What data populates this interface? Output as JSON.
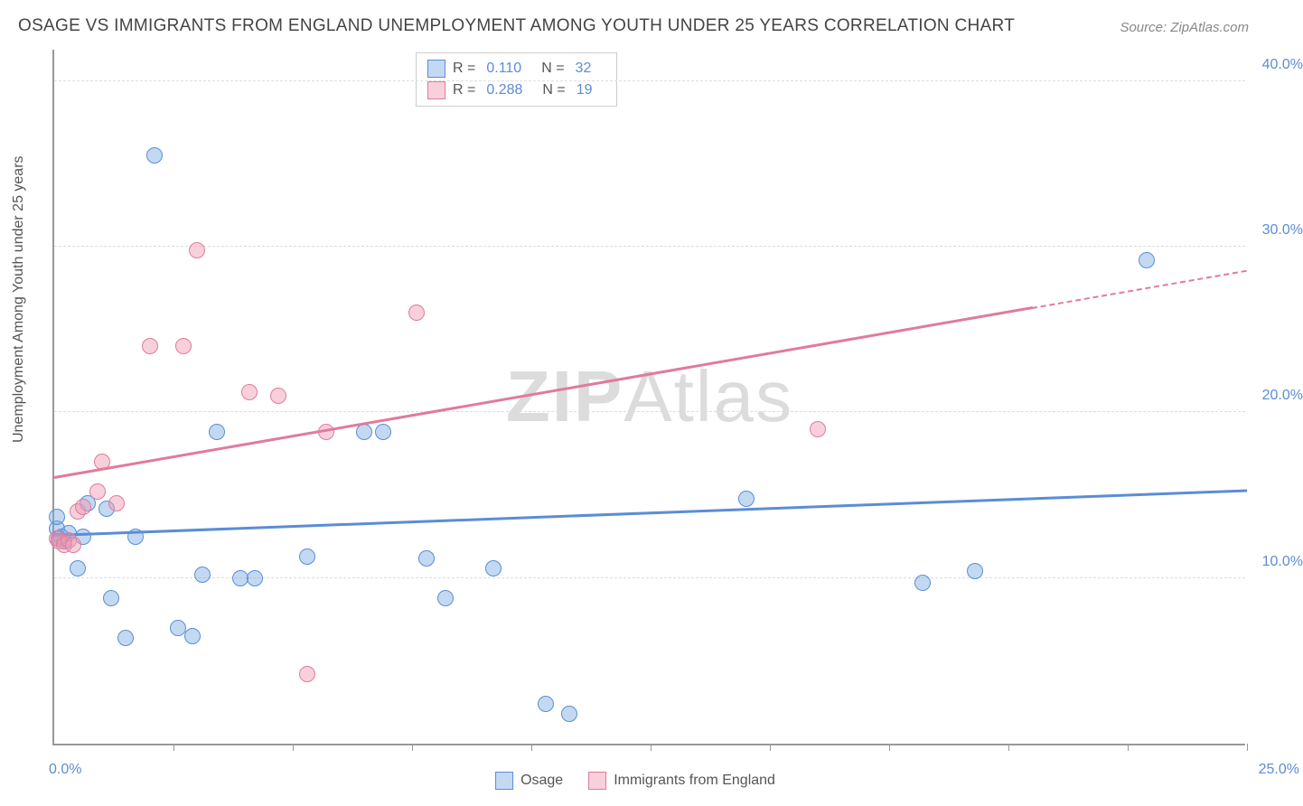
{
  "title": "OSAGE VS IMMIGRANTS FROM ENGLAND UNEMPLOYMENT AMONG YOUTH UNDER 25 YEARS CORRELATION CHART",
  "source": "Source: ZipAtlas.com",
  "y_axis_label": "Unemployment Among Youth under 25 years",
  "watermark_a": "ZIP",
  "watermark_b": "Atlas",
  "chart": {
    "type": "scatter",
    "xlim": [
      0,
      25
    ],
    "ylim": [
      0,
      42
    ],
    "y_ticks": [
      10,
      20,
      30,
      40
    ],
    "y_tick_labels": [
      "10.0%",
      "20.0%",
      "30.0%",
      "40.0%"
    ],
    "x_ticks": [
      2.5,
      5,
      7.5,
      10,
      12.5,
      15,
      17.5,
      20,
      22.5,
      25
    ],
    "x_tick_start": "0.0%",
    "x_tick_end": "25.0%",
    "grid_color": "#dddddd",
    "axis_color": "#999999",
    "background_color": "#ffffff",
    "series": [
      {
        "name": "Osage",
        "label": "Osage",
        "color_fill": "rgba(121,171,227,0.45)",
        "color_stroke": "#5b8dd6",
        "marker_radius": 9,
        "r_value": "0.110",
        "n_value": "32",
        "trend": {
          "x1": 0,
          "y1": 12.5,
          "x2": 25,
          "y2": 15.2,
          "dashed_from_x": null
        },
        "points": [
          [
            0.05,
            13.0
          ],
          [
            0.1,
            12.4
          ],
          [
            0.15,
            12.5
          ],
          [
            0.2,
            12.2
          ],
          [
            0.3,
            12.7
          ],
          [
            0.05,
            13.7
          ],
          [
            0.5,
            10.6
          ],
          [
            0.6,
            12.5
          ],
          [
            0.7,
            14.5
          ],
          [
            1.1,
            14.2
          ],
          [
            1.2,
            8.8
          ],
          [
            1.5,
            6.4
          ],
          [
            1.7,
            12.5
          ],
          [
            2.1,
            35.5
          ],
          [
            2.6,
            7.0
          ],
          [
            2.9,
            6.5
          ],
          [
            3.1,
            10.2
          ],
          [
            3.4,
            18.8
          ],
          [
            3.9,
            10.0
          ],
          [
            4.2,
            10.0
          ],
          [
            5.3,
            11.3
          ],
          [
            6.5,
            18.8
          ],
          [
            6.9,
            18.8
          ],
          [
            7.8,
            11.2
          ],
          [
            8.2,
            8.8
          ],
          [
            9.2,
            10.6
          ],
          [
            10.3,
            2.4
          ],
          [
            10.8,
            1.8
          ],
          [
            14.5,
            14.8
          ],
          [
            18.2,
            9.7
          ],
          [
            19.3,
            10.4
          ],
          [
            22.9,
            29.2
          ]
        ]
      },
      {
        "name": "Immigrants from England",
        "label": "Immigrants from England",
        "color_fill": "rgba(240,150,175,0.45)",
        "color_stroke": "#e07b9b",
        "marker_radius": 9,
        "r_value": "0.288",
        "n_value": "19",
        "trend": {
          "x1": 0,
          "y1": 16.0,
          "x2": 25,
          "y2": 28.5,
          "dashed_from_x": 20.5
        },
        "points": [
          [
            0.05,
            12.4
          ],
          [
            0.1,
            12.2
          ],
          [
            0.2,
            12.0
          ],
          [
            0.3,
            12.3
          ],
          [
            0.5,
            14.0
          ],
          [
            0.6,
            14.3
          ],
          [
            0.9,
            15.2
          ],
          [
            1.0,
            17.0
          ],
          [
            1.3,
            14.5
          ],
          [
            2.0,
            24.0
          ],
          [
            2.7,
            24.0
          ],
          [
            3.0,
            29.8
          ],
          [
            4.1,
            21.2
          ],
          [
            4.7,
            21.0
          ],
          [
            5.3,
            4.2
          ],
          [
            5.7,
            18.8
          ],
          [
            7.6,
            26.0
          ],
          [
            16.0,
            19.0
          ],
          [
            0.4,
            12.0
          ]
        ]
      }
    ]
  },
  "stats_legend": {
    "r_label": "R =",
    "n_label": "N ="
  },
  "bottom_legend": {
    "items": [
      "Osage",
      "Immigrants from England"
    ]
  }
}
